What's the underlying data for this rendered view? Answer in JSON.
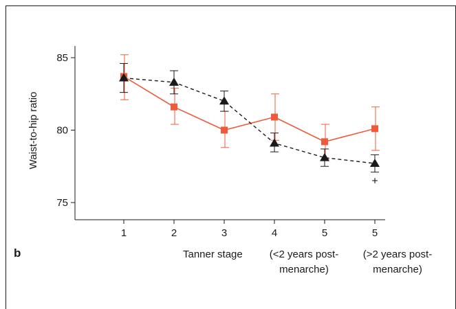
{
  "panel_label": "b",
  "colors": {
    "series_orange": "#f05a3c",
    "series_black": "#1a1a1a",
    "axis": "#1a1a1a",
    "frame": "#1a1a1a"
  },
  "chart_data": {
    "type": "line",
    "title": "",
    "ylabel": "Waist-to-hip ratio",
    "xlabel": "Tanner stage",
    "categories": [
      "1",
      "2",
      "3",
      "4",
      "5",
      "5"
    ],
    "category_notes": [
      "",
      "",
      "",
      "",
      "(<2 years post-\nmenarche)",
      "(>2 years post-\nmenarche)"
    ],
    "ylim": [
      73.5,
      86.5
    ],
    "yticks": [
      75,
      80,
      85
    ],
    "grid": false,
    "legend": "none",
    "series": [
      {
        "marker": "square",
        "line": "solid",
        "color": "#f05a3c",
        "values": [
          83.7,
          81.6,
          80.0,
          80.9,
          79.2,
          80.1
        ],
        "err_high": [
          85.2,
          82.9,
          81.3,
          82.5,
          80.4,
          81.6
        ],
        "err_low": [
          82.1,
          80.4,
          78.8,
          79.3,
          78.0,
          78.6
        ]
      },
      {
        "marker": "triangle",
        "line": "dashed",
        "color": "#1a1a1a",
        "values": [
          83.6,
          83.3,
          82.0,
          79.1,
          78.1,
          77.7
        ],
        "err_high": [
          84.6,
          84.1,
          82.7,
          79.8,
          78.7,
          78.3
        ],
        "err_low": [
          82.6,
          82.5,
          81.3,
          78.5,
          77.5,
          77.1
        ]
      }
    ],
    "annotations": [
      {
        "text": "+",
        "category_index": 5,
        "y": 76.5
      }
    ]
  }
}
